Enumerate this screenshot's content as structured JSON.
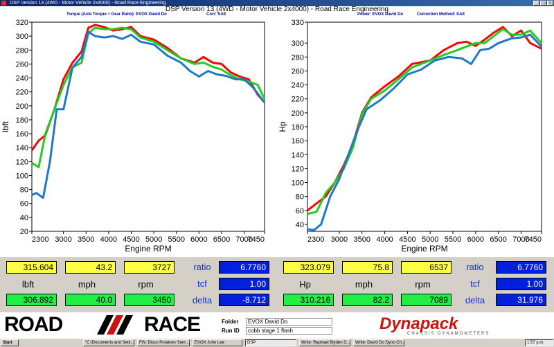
{
  "window": {
    "title": "DSP Version 13 (4WD - Motor Vehicle 2x4000) - Road Race Engineering"
  },
  "caption": "DSP Version 13 (4WD - Motor Vehicle 2x4000) - Road Race Engineering",
  "left_header": {
    "a": "Torque (Axle Torque ÷ Gear Ratio): EVOX David Do",
    "b": "Corr: SAE"
  },
  "right_header": {
    "a": "Power: EVOX David Do",
    "b": "Correction Method: SAE"
  },
  "chart_data": [
    {
      "type": "line",
      "title": "",
      "xlabel": "Engine RPM",
      "ylabel": "lbft",
      "xlim": [
        2300,
        7450
      ],
      "ylim": [
        20,
        320
      ],
      "xticks": [
        2300,
        3000,
        3500,
        4000,
        4500,
        5000,
        5500,
        6000,
        6500,
        7000,
        7450
      ],
      "yticks": [
        20,
        40,
        60,
        80,
        100,
        120,
        140,
        160,
        180,
        200,
        220,
        240,
        260,
        280,
        300,
        320
      ],
      "series": [
        {
          "color": "#ff0000",
          "x": [
            2300,
            2450,
            2600,
            2800,
            3000,
            3200,
            3400,
            3550,
            3700,
            3900,
            4100,
            4300,
            4500,
            4700,
            5000,
            5300,
            5600,
            5900,
            6100,
            6300,
            6500,
            6700,
            6900,
            7100,
            7300,
            7450
          ],
          "y": [
            136,
            150,
            158,
            195,
            238,
            262,
            278,
            312,
            316,
            313,
            308,
            310,
            313,
            300,
            295,
            283,
            268,
            262,
            270,
            262,
            260,
            248,
            242,
            238,
            216,
            205
          ]
        },
        {
          "color": "#22cc22",
          "x": [
            2300,
            2450,
            2600,
            2800,
            3000,
            3200,
            3400,
            3550,
            3700,
            3900,
            4100,
            4300,
            4500,
            4700,
            5000,
            5300,
            5600,
            5900,
            6100,
            6300,
            6500,
            6700,
            6900,
            7100,
            7300,
            7450
          ],
          "y": [
            118,
            112,
            160,
            195,
            230,
            255,
            262,
            304,
            312,
            310,
            310,
            312,
            310,
            298,
            292,
            280,
            268,
            260,
            262,
            256,
            252,
            244,
            238,
            235,
            230,
            210
          ]
        },
        {
          "color": "#1e78c8",
          "x": [
            2300,
            2400,
            2550,
            2700,
            2850,
            3000,
            3200,
            3400,
            3550,
            3700,
            3900,
            4100,
            4300,
            4500,
            4700,
            5000,
            5300,
            5600,
            5800,
            6000,
            6200,
            6400,
            6600,
            6800,
            7000,
            7200,
            7450
          ],
          "y": [
            72,
            75,
            68,
            120,
            195,
            195,
            255,
            270,
            306,
            300,
            298,
            300,
            296,
            302,
            292,
            288,
            272,
            262,
            250,
            242,
            250,
            245,
            243,
            238,
            238,
            226,
            205
          ]
        }
      ]
    },
    {
      "type": "line",
      "title": "",
      "xlabel": "Engine RPM",
      "ylabel": "Hp",
      "xlim": [
        2300,
        7450
      ],
      "ylim": [
        30,
        330
      ],
      "xticks": [
        2300,
        3000,
        3500,
        4000,
        4500,
        5000,
        5500,
        6000,
        6500,
        7000,
        7450
      ],
      "yticks": [
        40,
        60,
        80,
        100,
        120,
        140,
        160,
        180,
        200,
        220,
        240,
        260,
        280,
        300,
        330
      ],
      "series": [
        {
          "color": "#ff0000",
          "x": [
            2300,
            2500,
            2700,
            2900,
            3100,
            3300,
            3500,
            3700,
            4000,
            4300,
            4600,
            5000,
            5300,
            5600,
            5800,
            6000,
            6200,
            6400,
            6600,
            6800,
            7000,
            7200,
            7450
          ],
          "y": [
            60,
            70,
            80,
            100,
            125,
            155,
            200,
            222,
            238,
            252,
            270,
            275,
            290,
            300,
            302,
            296,
            305,
            315,
            323,
            310,
            318,
            300,
            292
          ]
        },
        {
          "color": "#22cc22",
          "x": [
            2300,
            2500,
            2700,
            2900,
            3100,
            3300,
            3500,
            3700,
            4000,
            4300,
            4600,
            5000,
            5300,
            5600,
            5800,
            6000,
            6200,
            6400,
            6600,
            6800,
            7000,
            7200,
            7450
          ],
          "y": [
            55,
            58,
            85,
            100,
            120,
            150,
            198,
            220,
            232,
            248,
            265,
            275,
            283,
            290,
            295,
            300,
            300,
            310,
            320,
            312,
            312,
            318,
            300
          ]
        },
        {
          "color": "#1e78c8",
          "x": [
            2300,
            2450,
            2600,
            2800,
            3000,
            3200,
            3400,
            3600,
            3900,
            4200,
            4500,
            4800,
            5100,
            5400,
            5700,
            5900,
            6100,
            6300,
            6500,
            6800,
            7000,
            7200,
            7450
          ],
          "y": [
            33,
            32,
            40,
            80,
            105,
            140,
            175,
            205,
            218,
            235,
            255,
            262,
            275,
            280,
            278,
            270,
            290,
            292,
            300,
            307,
            308,
            312,
            295
          ]
        }
      ]
    }
  ],
  "left_readout": {
    "top": [
      "315.604",
      "43.2",
      "3727"
    ],
    "labels": [
      "lbft",
      "mph",
      "rpm"
    ],
    "bottom": [
      "306.892",
      "40.0",
      "3450"
    ],
    "side_labels": [
      "ratio",
      "tcf",
      "delta"
    ],
    "side_values": [
      "6.7760",
      "1.00",
      "-8.712"
    ]
  },
  "right_readout": {
    "top": [
      "323.079",
      "75.8",
      "6537"
    ],
    "labels": [
      "Hp",
      "mph",
      "rpm"
    ],
    "bottom": [
      "310.216",
      "82.2",
      "7089"
    ],
    "side_labels": [
      "ratio",
      "tcf",
      "delta"
    ],
    "side_values": [
      "6.7760",
      "1.00",
      "31.976"
    ]
  },
  "brand": {
    "left_road": "ROAD",
    "left_race": "RACE",
    "folder_label": "Folder",
    "folder_value": "EVOX David Do",
    "runid_label": "Run ID",
    "runid_value": "cobb stage 1 flash",
    "logo": "Dynapack",
    "logo_sub": "CHASSIS DYNAMOMETERS"
  },
  "taskbar": {
    "start": "Start",
    "items": [
      "\"C:\\Documents and Setti...",
      "FW: Disco Potatoes Sent...",
      "EVOX John Lee",
      "DSP",
      "Write: Raphael Blyden D...",
      "Write: David Do Dyno Ch..."
    ],
    "clock": "1:57 p.m."
  }
}
